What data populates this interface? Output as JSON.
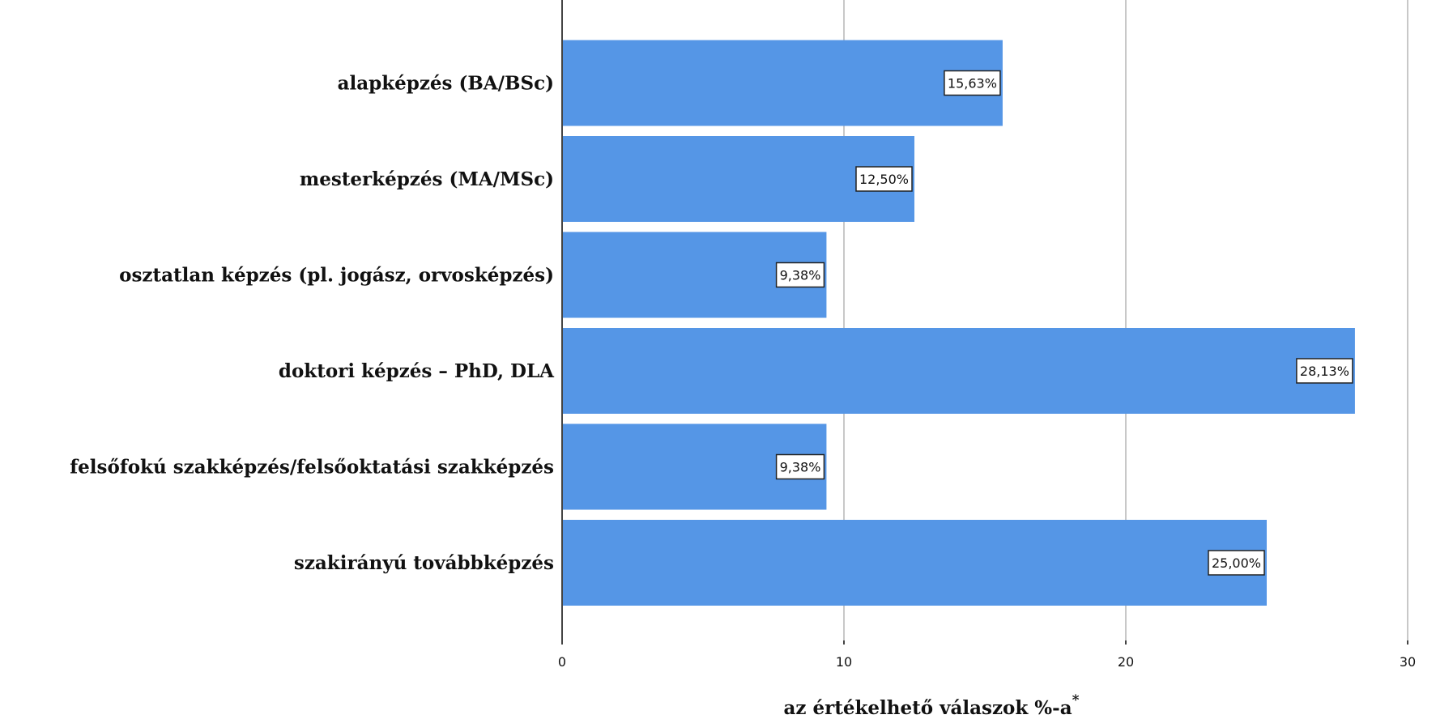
{
  "chart_data": {
    "type": "bar",
    "orientation": "horizontal",
    "categories": [
      "alapképzés (BA/BSc)",
      "mesterképzés (MA/MSc)",
      "osztatlan képzés (pl. jogász, orvosképzés)",
      "doktori képzés – PhD, DLA",
      "felsőfokú szakképzés/felsőoktatási szakképzés",
      "szakirányú továbbképzés"
    ],
    "values": [
      15.63,
      12.5,
      9.38,
      28.13,
      9.38,
      25.0
    ],
    "value_labels": [
      "15,63%",
      "12,50%",
      "9,38%",
      "28,13%",
      "9,38%",
      "25,00%"
    ],
    "xlabel": "az értékelhető válaszok %-a",
    "xlabel_suffix": "*",
    "xlim": [
      0,
      30
    ],
    "xticks": [
      0,
      10,
      20,
      30
    ],
    "xtick_labels": [
      "0",
      "10",
      "20",
      "30"
    ],
    "grid": "vertical",
    "bar_color": "#5596e6",
    "grid_color": "#c8c8c8",
    "axis_color": "#444444"
  }
}
